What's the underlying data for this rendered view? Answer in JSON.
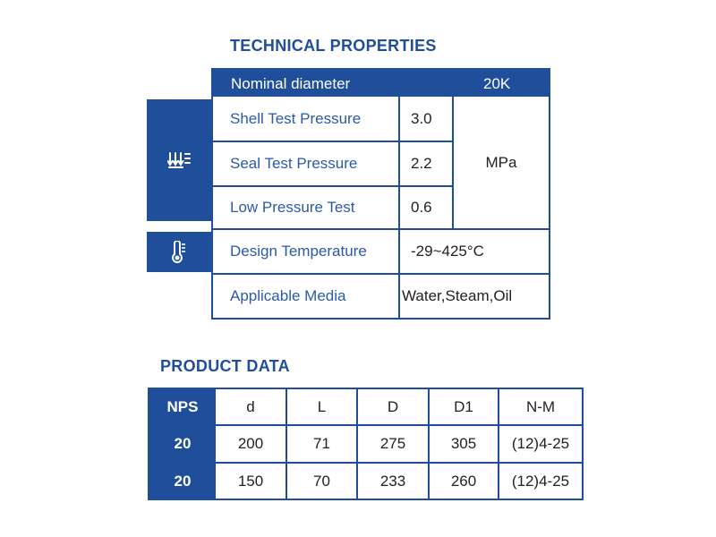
{
  "technical": {
    "title": "TECHNICAL PROPERTIES",
    "header": {
      "label": "Nominal diameter",
      "value": "20K"
    },
    "rows": [
      {
        "label": "Shell Test Pressure",
        "value": "3.0"
      },
      {
        "label": "Seal Test Pressure",
        "value": "2.2"
      },
      {
        "label": "Low Pressure Test",
        "value": "0.6"
      },
      {
        "label": "Design Temperature",
        "value": "-29~425°C"
      },
      {
        "label": "Applicable Media",
        "value": "Water,Steam,Oil"
      }
    ],
    "pressure_unit": "MPa",
    "icons": [
      "pressure-arrows-icon",
      "thermometer-icon"
    ],
    "accent_color": "#1f4f9b"
  },
  "product": {
    "title": "PRODUCT DATA",
    "columns": [
      "NPS",
      "d",
      "L",
      "D",
      "D1",
      "N-M"
    ],
    "rows": [
      [
        "20",
        "200",
        "71",
        "275",
        "305",
        "(12)4-25"
      ],
      [
        "20",
        "150",
        "70",
        "233",
        "260",
        "(12)4-25"
      ]
    ]
  }
}
